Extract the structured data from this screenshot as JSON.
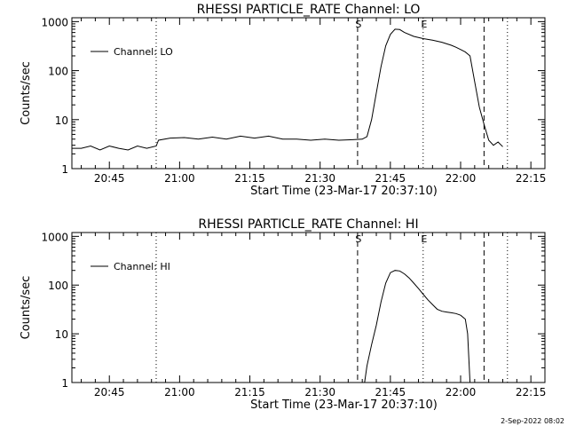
{
  "footer_text": "2-Sep-2022 08:02",
  "chart_data": [
    {
      "type": "line",
      "title": "RHESSI PARTICLE_RATE Channel: LO",
      "xlabel": "Start Time (23-Mar-17 20:37:10)",
      "ylabel": "Counts/sec",
      "y_scale": "log",
      "ylim": [
        1,
        1200
      ],
      "xlim": [
        "20:37",
        "22:18"
      ],
      "x_tick_labels": [
        "20:45",
        "21:00",
        "21:15",
        "21:30",
        "21:45",
        "22:00",
        "22:15"
      ],
      "x_ticks": [
        "20:45",
        "21:00",
        "21:15",
        "21:30",
        "21:45",
        "22:00",
        "22:15"
      ],
      "y_tick_labels": [
        "1",
        "10",
        "100",
        "1000"
      ],
      "y_ticks": [
        1,
        10,
        100,
        1000
      ],
      "legend": {
        "position": "top-left",
        "entries": [
          "Channel: LO"
        ]
      },
      "markers": [
        {
          "label": "S",
          "time": "21:38",
          "style": "dashed"
        },
        {
          "label": "E",
          "time": "21:52",
          "style": "dotted"
        }
      ],
      "vertical_lines": [
        {
          "time": "20:55",
          "style": "dotted"
        },
        {
          "time": "22:05",
          "style": "dashed"
        },
        {
          "time": "22:10",
          "style": "dotted"
        }
      ],
      "series": [
        {
          "name": "Channel: LO",
          "x": [
            "20:37",
            "20:39",
            "20:41",
            "20:43",
            "20:45",
            "20:47",
            "20:49",
            "20:51",
            "20:53",
            "20:55",
            "20:55.5",
            "20:58",
            "21:01",
            "21:04",
            "21:07",
            "21:10",
            "21:13",
            "21:16",
            "21:19",
            "21:22",
            "21:25",
            "21:28",
            "21:31",
            "21:34",
            "21:37",
            "21:39",
            "21:40",
            "21:41",
            "21:42",
            "21:43",
            "21:44",
            "21:45",
            "21:46",
            "21:47",
            "21:48",
            "21:50",
            "21:52",
            "21:54",
            "21:56",
            "21:58",
            "21:59",
            "22:00",
            "22:01",
            "22:02",
            "22:03",
            "22:04",
            "22:05",
            "22:06",
            "22:07",
            "22:08",
            "22:09"
          ],
          "y": [
            2.6,
            2.6,
            2.9,
            2.4,
            2.9,
            2.6,
            2.4,
            2.9,
            2.6,
            2.9,
            3.8,
            4.2,
            4.3,
            4.0,
            4.4,
            4.0,
            4.6,
            4.2,
            4.6,
            4.0,
            4.0,
            3.8,
            4.0,
            3.8,
            3.9,
            4.0,
            4.5,
            10,
            35,
            120,
            320,
            550,
            700,
            690,
            600,
            500,
            450,
            420,
            380,
            330,
            300,
            270,
            240,
            200,
            60,
            18,
            8,
            3.8,
            3.0,
            3.5,
            2.8
          ]
        }
      ]
    },
    {
      "type": "line",
      "title": "RHESSI PARTICLE_RATE Channel: HI",
      "xlabel": "Start Time (23-Mar-17 20:37:10)",
      "ylabel": "Counts/sec",
      "y_scale": "log",
      "ylim": [
        1,
        1200
      ],
      "xlim": [
        "20:37",
        "22:18"
      ],
      "x_tick_labels": [
        "20:45",
        "21:00",
        "21:15",
        "21:30",
        "21:45",
        "22:00",
        "22:15"
      ],
      "x_ticks": [
        "20:45",
        "21:00",
        "21:15",
        "21:30",
        "21:45",
        "22:00",
        "22:15"
      ],
      "y_tick_labels": [
        "1",
        "10",
        "100",
        "1000"
      ],
      "y_ticks": [
        1,
        10,
        100,
        1000
      ],
      "legend": {
        "position": "top-left",
        "entries": [
          "Channel: HI"
        ]
      },
      "markers": [
        {
          "label": "S",
          "time": "21:38",
          "style": "dashed"
        },
        {
          "label": "E",
          "time": "21:52",
          "style": "dotted"
        }
      ],
      "vertical_lines": [
        {
          "time": "20:55",
          "style": "dotted"
        },
        {
          "time": "22:05",
          "style": "dashed"
        },
        {
          "time": "22:10",
          "style": "dotted"
        }
      ],
      "series": [
        {
          "name": "Channel: HI",
          "x": [
            "21:39.5",
            "21:40",
            "21:41",
            "21:42",
            "21:43",
            "21:44",
            "21:45",
            "21:46",
            "21:47",
            "21:48",
            "21:49",
            "21:50",
            "21:51",
            "21:52",
            "21:53",
            "21:54",
            "21:55",
            "21:56",
            "21:57",
            "21:58",
            "21:59",
            "22:00",
            "22:01",
            "22:01.5",
            "22:02"
          ],
          "y": [
            1.0,
            2.2,
            6,
            15,
            45,
            110,
            180,
            200,
            195,
            170,
            140,
            110,
            85,
            65,
            50,
            40,
            32,
            29,
            28,
            27,
            26,
            24,
            20,
            10,
            1.0
          ]
        }
      ]
    }
  ]
}
